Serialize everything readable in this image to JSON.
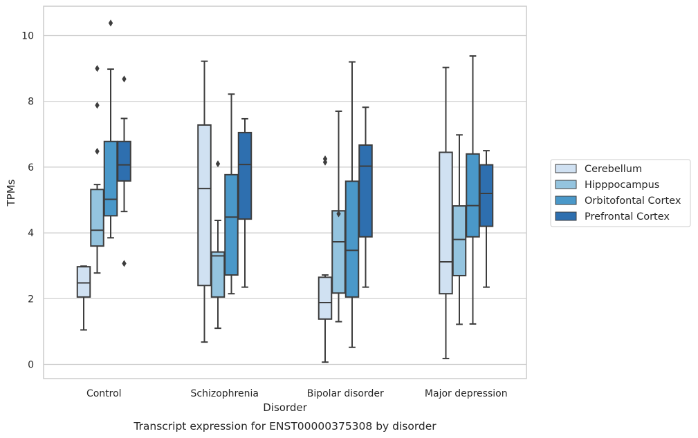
{
  "chart_data": {
    "type": "box",
    "xlabel": "Disorder",
    "ylabel": "TPMs",
    "caption": "Transcript expression for ENST00000375308 by disorder",
    "ylim": [
      -0.45,
      10.85
    ],
    "yticks": [
      0,
      2,
      4,
      6,
      8,
      10
    ],
    "grid": "horizontal",
    "legend_position": "right",
    "categories": [
      "Control",
      "Schizophrenia",
      "Bipolar disorder",
      "Major depression"
    ],
    "series": [
      {
        "name": "Cerebellum",
        "color": "#d0e1f2",
        "boxes": [
          {
            "whislo": 1.05,
            "q1": 2.05,
            "med": 2.48,
            "q3": 2.97,
            "whishi": 2.99,
            "fliers": []
          },
          {
            "whislo": 0.68,
            "q1": 2.4,
            "med": 5.35,
            "q3": 7.28,
            "whishi": 9.22,
            "fliers": []
          },
          {
            "whislo": 0.07,
            "q1": 1.38,
            "med": 1.88,
            "q3": 2.65,
            "whishi": 2.72,
            "fliers": [
              6.15,
              6.25
            ]
          },
          {
            "whislo": 0.18,
            "q1": 2.15,
            "med": 3.12,
            "q3": 6.45,
            "whishi": 9.03,
            "fliers": []
          }
        ]
      },
      {
        "name": "Hipppocampus",
        "color": "#94c4df",
        "boxes": [
          {
            "whislo": 2.78,
            "q1": 3.6,
            "med": 4.08,
            "q3": 5.32,
            "whishi": 5.47,
            "fliers": [
              9.0,
              7.88,
              6.48
            ]
          },
          {
            "whislo": 1.1,
            "q1": 2.05,
            "med": 3.3,
            "q3": 3.42,
            "whishi": 4.38,
            "fliers": [
              6.1
            ]
          },
          {
            "whislo": 1.3,
            "q1": 2.17,
            "med": 3.73,
            "q3": 4.67,
            "whishi": 7.7,
            "fliers": [
              4.58
            ]
          },
          {
            "whislo": 1.22,
            "q1": 2.7,
            "med": 3.8,
            "q3": 4.82,
            "whishi": 6.98,
            "fliers": []
          }
        ]
      },
      {
        "name": "Orbitofontal Cortex",
        "color": "#4a98c9",
        "boxes": [
          {
            "whislo": 3.85,
            "q1": 4.52,
            "med": 5.02,
            "q3": 6.78,
            "whishi": 8.98,
            "fliers": [
              10.38
            ]
          },
          {
            "whislo": 2.15,
            "q1": 2.72,
            "med": 4.48,
            "q3": 5.77,
            "whishi": 8.22,
            "fliers": []
          },
          {
            "whislo": 0.52,
            "q1": 2.05,
            "med": 3.47,
            "q3": 5.57,
            "whishi": 9.2,
            "fliers": []
          },
          {
            "whislo": 1.23,
            "q1": 3.88,
            "med": 4.83,
            "q3": 6.4,
            "whishi": 9.38,
            "fliers": []
          }
        ]
      },
      {
        "name": "Prefrontal Cortex",
        "color": "#2e6faf",
        "boxes": [
          {
            "whislo": 4.65,
            "q1": 5.58,
            "med": 6.07,
            "q3": 6.78,
            "whishi": 7.48,
            "fliers": [
              8.68,
              3.07
            ]
          },
          {
            "whislo": 2.35,
            "q1": 4.42,
            "med": 6.08,
            "q3": 7.05,
            "whishi": 7.47,
            "fliers": []
          },
          {
            "whislo": 2.35,
            "q1": 3.88,
            "med": 6.03,
            "q3": 6.67,
            "whishi": 7.82,
            "fliers": []
          },
          {
            "whislo": 2.35,
            "q1": 4.2,
            "med": 5.2,
            "q3": 6.07,
            "whishi": 6.5,
            "fliers": []
          }
        ]
      }
    ]
  }
}
